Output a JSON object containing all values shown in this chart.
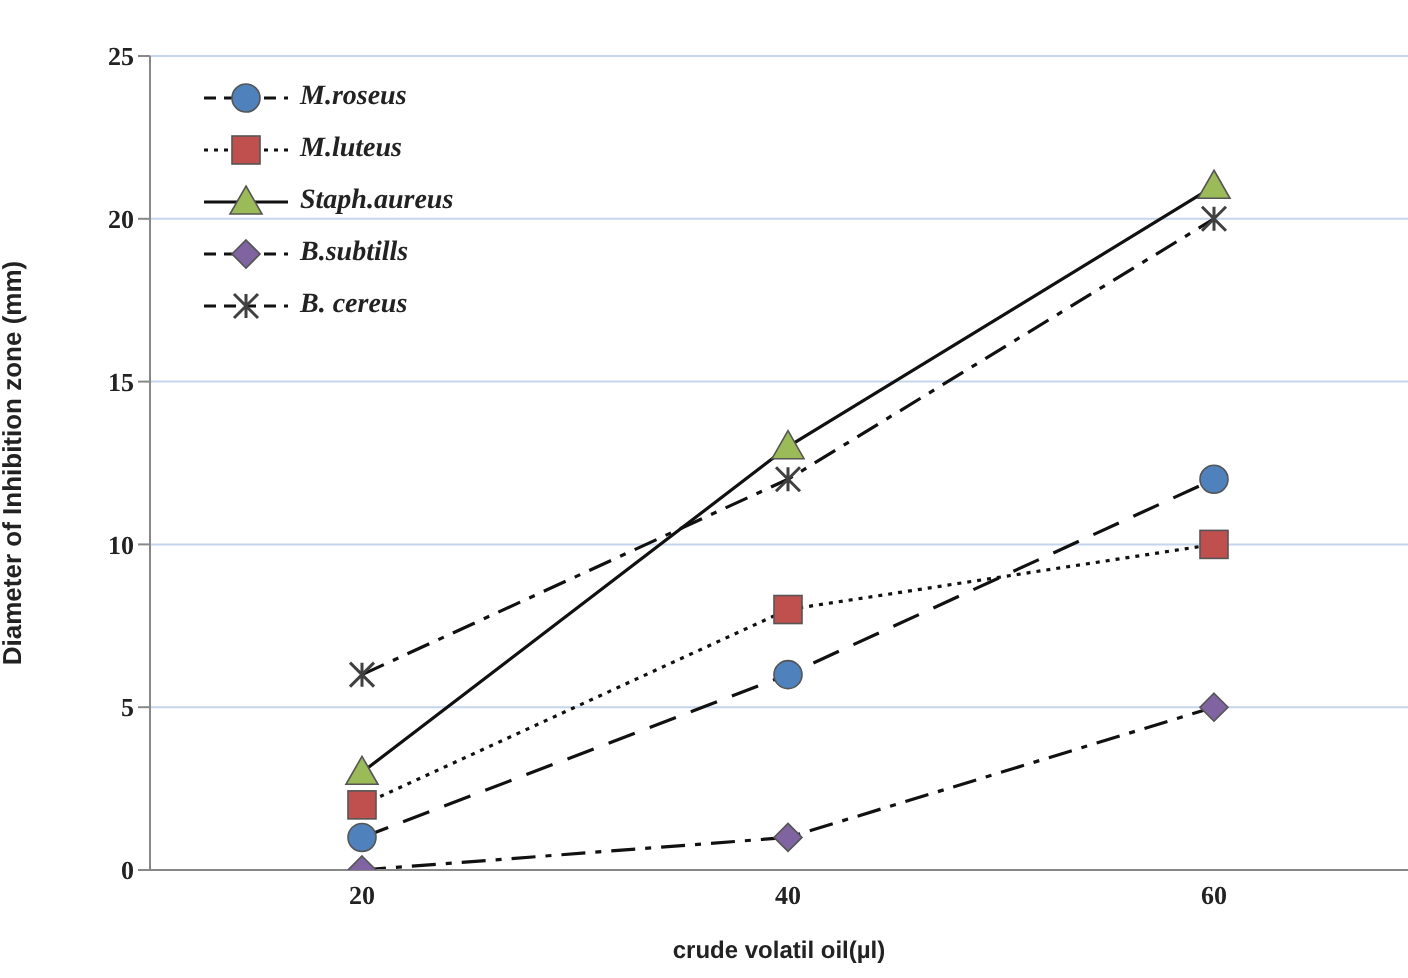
{
  "chart_data": {
    "type": "line",
    "xlabel": "crude volatil oil(µl)",
    "ylabel": "Diameter of Inhibition zone (mm)",
    "categories": [
      "20",
      "40",
      "60"
    ],
    "ylim": [
      0,
      25
    ],
    "yticks": [
      0,
      5,
      10,
      15,
      20,
      25
    ],
    "grid": "y",
    "legend": "top left",
    "series": [
      {
        "name": "M.roseus",
        "color": "#4f81bd",
        "marker": "circle",
        "line_style": "dashed",
        "values": [
          1,
          6,
          12
        ]
      },
      {
        "name": "M.luteus",
        "color": "#c0504d",
        "marker": "square",
        "line_style": "dotted",
        "values": [
          2,
          8,
          10
        ]
      },
      {
        "name": "Staph.aureus",
        "color": "#9bbb59",
        "marker": "triangle",
        "line_style": "solid",
        "values": [
          3,
          13,
          21
        ]
      },
      {
        "name": "B.subtills",
        "color": "#8064a2",
        "marker": "diamond",
        "line_style": "dashdot",
        "values": [
          0,
          1,
          5
        ]
      },
      {
        "name": "B. cereus",
        "color": "#404040",
        "marker": "cross",
        "line_style": "dashdot",
        "values": [
          6,
          12,
          20
        ]
      }
    ]
  }
}
